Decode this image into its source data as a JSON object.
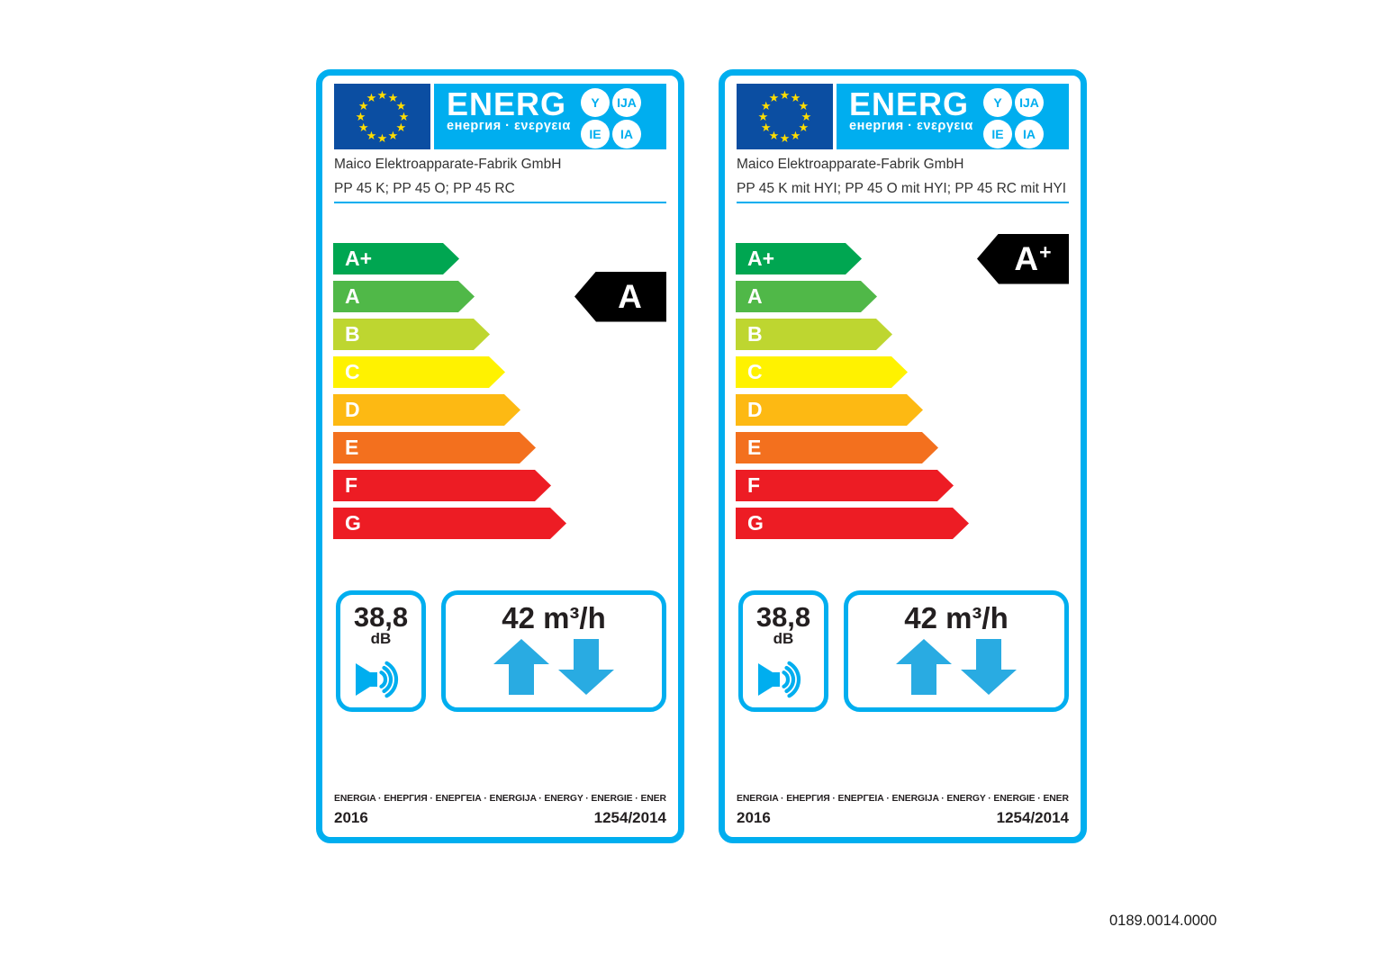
{
  "document_code": "0189.0014.0000",
  "logo": {
    "word": "ENERG",
    "subtitle": "енергия · ενεργεια",
    "suffixes": [
      "Y",
      "IJA",
      "IE",
      "IA"
    ]
  },
  "scale": {
    "classes": [
      {
        "label": "A+",
        "color": "#00a651"
      },
      {
        "label": "A",
        "color": "#50b848"
      },
      {
        "label": "B",
        "color": "#bed630"
      },
      {
        "label": "C",
        "color": "#fff200"
      },
      {
        "label": "D",
        "color": "#fdb913"
      },
      {
        "label": "E",
        "color": "#f3701e"
      },
      {
        "label": "F",
        "color": "#ed1c24"
      },
      {
        "label": "G",
        "color": "#ed1c24"
      }
    ]
  },
  "labels": [
    {
      "manufacturer": "Maico Elektroapparate-Fabrik GmbH",
      "model": "PP 45 K; PP 45 O; PP 45 RC",
      "rating_letter": "A",
      "rating_suffix": "",
      "rating_row_index": 1,
      "noise_value": "38,8",
      "noise_unit": "dB",
      "airflow": "42 m³/h",
      "languages_line": "ENERGIA · ЕНЕРГИЯ · ΕΝΕΡΓΕΙΑ · ENERGIJA · ENERGY · ENERGIE · ENERGI",
      "year": "2016",
      "regulation": "1254/2014"
    },
    {
      "manufacturer": "Maico Elektroapparate-Fabrik GmbH",
      "model": "PP 45 K mit HYI; PP 45 O mit HYI; PP 45 RC mit HYI",
      "rating_letter": "A",
      "rating_suffix": "+",
      "rating_row_index": 0,
      "noise_value": "38,8",
      "noise_unit": "dB",
      "airflow": "42 m³/h",
      "languages_line": "ENERGIA · ЕНЕРГИЯ · ΕΝΕΡΓΕΙΑ · ENERGIJA · ENERGY · ENERGIE · ENERGI",
      "year": "2016",
      "regulation": "1254/2014"
    }
  ],
  "colors": {
    "accent_cyan": "#00aeef",
    "flag_blue": "#0b4ea2",
    "star_yellow": "#ffdd00",
    "rating_arrow_black": "#000000",
    "text_dark": "#231f20"
  }
}
